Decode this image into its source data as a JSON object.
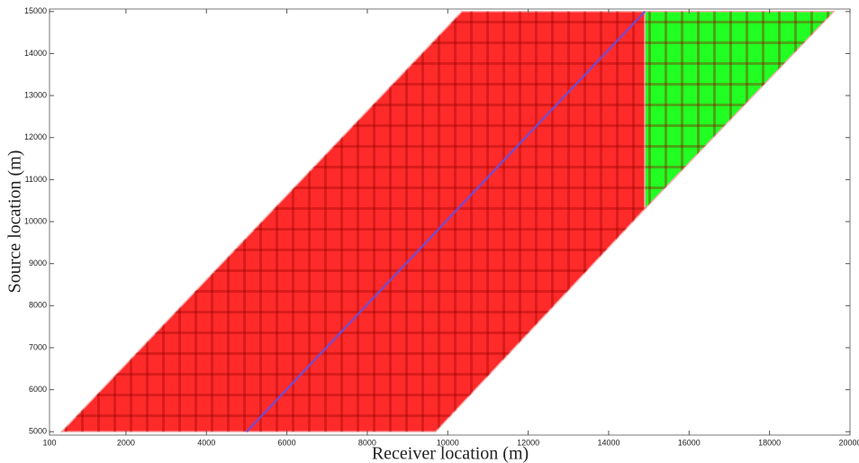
{
  "chart_data": {
    "type": "polygon",
    "xlabel": "Receiver location (m)",
    "ylabel": "Source location (m)",
    "xlim": [
      100,
      20000
    ],
    "ylim": [
      4920,
      15060
    ],
    "xticks": [
      100,
      2000,
      4000,
      6000,
      8000,
      10000,
      12000,
      14000,
      16000,
      18000,
      20000
    ],
    "yticks": [
      5000,
      6000,
      7000,
      8000,
      9000,
      10000,
      11000,
      12000,
      13000,
      14000,
      15000
    ],
    "series": [
      {
        "color": "#ff2a2a",
        "x": [
          400,
          10350,
          14900,
          14900,
          9700
        ],
        "y": [
          5000,
          15000,
          15000,
          10300,
          5000
        ]
      },
      {
        "color": "#22ff22",
        "x": [
          14900,
          19600,
          14900
        ],
        "y": [
          15000,
          15000,
          10300
        ]
      }
    ],
    "line": {
      "color": "#6a4de0",
      "x": [
        5000,
        14900
      ],
      "y": [
        5000,
        15000
      ]
    }
  }
}
